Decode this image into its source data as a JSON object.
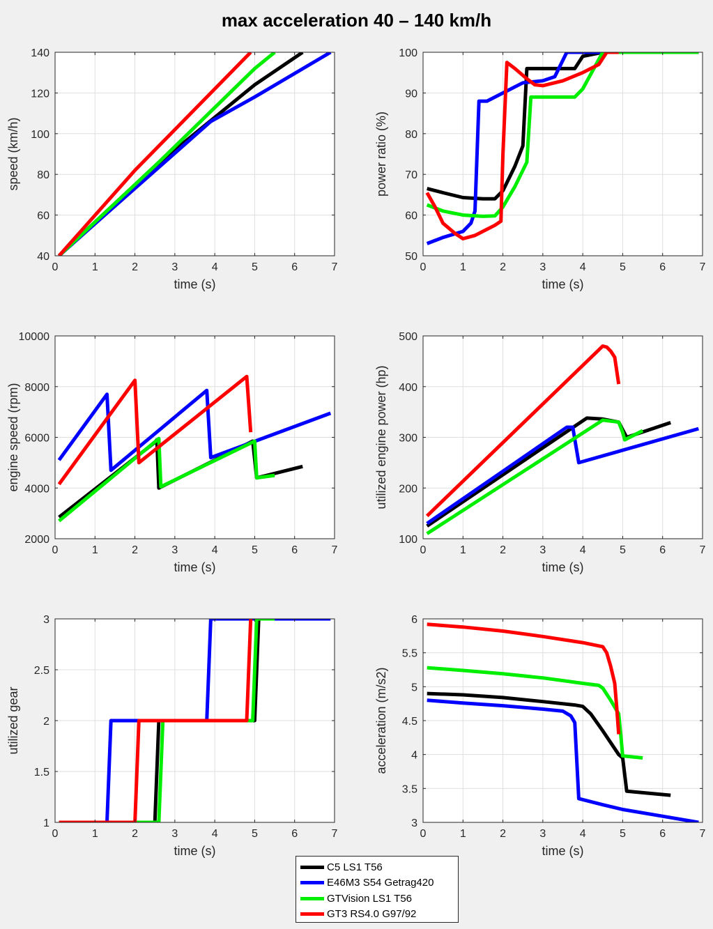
{
  "title": "max acceleration 40 – 140 km/h",
  "series": [
    {
      "name": "C5 LS1 T56",
      "color": "#000000"
    },
    {
      "name": "E46M3 S54 Getrag420",
      "color": "#0000ff"
    },
    {
      "name": "GTVision LS1 T56",
      "color": "#00ee00"
    },
    {
      "name": "GT3 RS4.0 G97/92",
      "color": "#ff0000"
    }
  ],
  "chart_data": [
    {
      "type": "line",
      "xlabel": "time (s)",
      "ylabel": "speed (km/h)",
      "xlim": [
        0,
        7
      ],
      "ylim": [
        40,
        140
      ],
      "xticks": [
        0,
        1,
        2,
        3,
        4,
        5,
        6,
        7
      ],
      "yticks": [
        40,
        60,
        80,
        100,
        120,
        140
      ],
      "series": [
        {
          "name": "C5 LS1 T56",
          "x": [
            0.1,
            2.5,
            4.0,
            5.0,
            6.2
          ],
          "y": [
            40,
            84,
            108,
            124,
            140
          ]
        },
        {
          "name": "E46M3 S54 Getrag420",
          "x": [
            0.1,
            1.3,
            3.9,
            5.0,
            6.9
          ],
          "y": [
            40,
            61,
            106,
            118,
            140
          ]
        },
        {
          "name": "GTVision LS1 T56",
          "x": [
            0.1,
            2.6,
            5.0,
            5.5
          ],
          "y": [
            40,
            86,
            132,
            140
          ]
        },
        {
          "name": "GT3 RS4.0 G97/92",
          "x": [
            0.1,
            2.0,
            4.9
          ],
          "y": [
            40,
            82,
            140
          ]
        }
      ]
    },
    {
      "type": "line",
      "xlabel": "time (s)",
      "ylabel": "power ratio (%)",
      "xlim": [
        0,
        7
      ],
      "ylim": [
        50,
        100
      ],
      "xticks": [
        0,
        1,
        2,
        3,
        4,
        5,
        6,
        7
      ],
      "yticks": [
        50,
        60,
        70,
        80,
        90,
        100
      ],
      "series": [
        {
          "name": "C5 LS1 T56",
          "x": [
            0.1,
            0.5,
            1.0,
            1.5,
            1.8,
            2.0,
            2.3,
            2.5,
            2.6,
            3.0,
            3.5,
            3.8,
            4.0,
            4.5,
            5.0,
            6.9
          ],
          "y": [
            66.5,
            65.5,
            64.3,
            64,
            64,
            66,
            72,
            77,
            96,
            96,
            96,
            96,
            99,
            100,
            100,
            100
          ]
        },
        {
          "name": "E46M3 S54 Getrag420",
          "x": [
            0.1,
            0.5,
            1.0,
            1.2,
            1.3,
            1.4,
            1.6,
            2.0,
            2.5,
            3.0,
            3.3,
            3.6,
            3.8,
            5.0,
            6.9
          ],
          "y": [
            53,
            54.5,
            56,
            58,
            61,
            88,
            88,
            90,
            92.5,
            93,
            94,
            100,
            100,
            100,
            100
          ]
        },
        {
          "name": "GTVision LS1 T56",
          "x": [
            0.1,
            0.5,
            1.0,
            1.5,
            1.8,
            2.0,
            2.3,
            2.6,
            2.7,
            3.0,
            3.5,
            3.8,
            4.0,
            4.5,
            5.0,
            5.5,
            6.9
          ],
          "y": [
            62.5,
            61,
            60,
            59.7,
            59.8,
            62,
            67,
            73,
            89,
            89,
            89,
            89,
            91,
            100,
            100,
            100,
            100
          ]
        },
        {
          "name": "GT3 RS4.0 G97/92",
          "x": [
            0.1,
            0.3,
            0.5,
            0.8,
            1.0,
            1.3,
            1.6,
            1.8,
            1.95,
            2.0,
            2.1,
            2.3,
            2.6,
            2.8,
            3.0,
            3.5,
            4.0,
            4.4,
            4.6,
            4.8,
            4.9
          ],
          "y": [
            65.5,
            62,
            58,
            55.5,
            54.2,
            55,
            56.5,
            57.5,
            58.5,
            75,
            97.5,
            96,
            93.5,
            92,
            91.8,
            93,
            95,
            97,
            100,
            100,
            100
          ]
        }
      ]
    },
    {
      "type": "line",
      "xlabel": "time (s)",
      "ylabel": "engine speed (rpm)",
      "xlim": [
        0,
        7
      ],
      "ylim": [
        2000,
        10000
      ],
      "xticks": [
        0,
        1,
        2,
        3,
        4,
        5,
        6,
        7
      ],
      "yticks": [
        2000,
        4000,
        6000,
        8000,
        10000
      ],
      "series": [
        {
          "name": "C5 LS1 T56",
          "x": [
            0.1,
            2.5,
            2.55,
            2.6,
            4.95,
            5.05,
            6.2
          ],
          "y": [
            2850,
            5800,
            5900,
            4000,
            5850,
            4400,
            4850
          ]
        },
        {
          "name": "E46M3 S54 Getrag420",
          "x": [
            0.1,
            1.3,
            1.4,
            3.8,
            3.9,
            6.9
          ],
          "y": [
            5100,
            7700,
            4700,
            7850,
            5200,
            6950
          ]
        },
        {
          "name": "GTVision LS1 T56",
          "x": [
            0.1,
            2.6,
            2.65,
            5.0,
            5.05,
            5.5
          ],
          "y": [
            2700,
            5950,
            4050,
            5850,
            4400,
            4500
          ]
        },
        {
          "name": "GT3 RS4.0 G97/92",
          "x": [
            0.1,
            2.0,
            2.1,
            4.8,
            4.9
          ],
          "y": [
            4150,
            8250,
            5000,
            8400,
            6200
          ]
        }
      ]
    },
    {
      "type": "line",
      "xlabel": "time (s)",
      "ylabel": "utilized engine power (hp)",
      "xlim": [
        0,
        7
      ],
      "ylim": [
        100,
        500
      ],
      "xticks": [
        0,
        1,
        2,
        3,
        4,
        5,
        6,
        7
      ],
      "yticks": [
        100,
        200,
        300,
        400,
        500
      ],
      "series": [
        {
          "name": "C5 LS1 T56",
          "x": [
            0.1,
            4.1,
            4.5,
            4.9,
            5.0,
            5.1,
            6.2
          ],
          "y": [
            125,
            338,
            336,
            330,
            315,
            300,
            329
          ]
        },
        {
          "name": "E46M3 S54 Getrag420",
          "x": [
            0.1,
            3.6,
            3.75,
            3.9,
            6.9
          ],
          "y": [
            130,
            320,
            320,
            250,
            317
          ]
        },
        {
          "name": "GTVision LS1 T56",
          "x": [
            0.1,
            4.5,
            4.9,
            5.0,
            5.05,
            5.5
          ],
          "y": [
            110,
            334,
            330,
            310,
            295,
            313
          ]
        },
        {
          "name": "GT3 RS4.0 G97/92",
          "x": [
            0.1,
            4.5,
            4.6,
            4.7,
            4.8,
            4.9
          ],
          "y": [
            145,
            480,
            478,
            470,
            458,
            405
          ]
        }
      ]
    },
    {
      "type": "line",
      "xlabel": "time (s)",
      "ylabel": "utilized gear",
      "xlim": [
        0,
        7
      ],
      "ylim": [
        1,
        3
      ],
      "xticks": [
        0,
        1,
        2,
        3,
        4,
        5,
        6,
        7
      ],
      "yticks": [
        1,
        1.5,
        2,
        2.5,
        3
      ],
      "series": [
        {
          "name": "C5 LS1 T56",
          "x": [
            0.1,
            2.5,
            2.6,
            5.0,
            5.1,
            6.2
          ],
          "y": [
            1,
            1,
            2,
            2,
            3,
            3
          ]
        },
        {
          "name": "E46M3 S54 Getrag420",
          "x": [
            0.1,
            1.3,
            1.4,
            3.8,
            3.9,
            6.9
          ],
          "y": [
            1,
            1,
            2,
            2,
            3,
            3
          ]
        },
        {
          "name": "GTVision LS1 T56",
          "x": [
            0.1,
            2.6,
            2.7,
            4.95,
            5.05,
            5.5
          ],
          "y": [
            1,
            1,
            2,
            2,
            3,
            3
          ]
        },
        {
          "name": "GT3 RS4.0 G97/92",
          "x": [
            0.1,
            2.0,
            2.1,
            4.8,
            4.9
          ],
          "y": [
            1,
            1,
            2,
            2,
            3
          ]
        }
      ]
    },
    {
      "type": "line",
      "xlabel": "time (s)",
      "ylabel": "acceleration (m/s2)",
      "xlim": [
        0,
        7
      ],
      "ylim": [
        3,
        6
      ],
      "xticks": [
        0,
        1,
        2,
        3,
        4,
        5,
        6,
        7
      ],
      "yticks": [
        3,
        3.5,
        4,
        4.5,
        5,
        5.5,
        6
      ],
      "series": [
        {
          "name": "C5 LS1 T56",
          "x": [
            0.1,
            1.0,
            2.0,
            3.0,
            3.8,
            4.0,
            4.2,
            4.5,
            4.9,
            5.0,
            5.1,
            6.2
          ],
          "y": [
            4.9,
            4.88,
            4.84,
            4.78,
            4.73,
            4.71,
            4.6,
            4.35,
            4.0,
            3.95,
            3.46,
            3.4
          ]
        },
        {
          "name": "E46M3 S54 Getrag420",
          "x": [
            0.1,
            1.0,
            2.0,
            3.0,
            3.5,
            3.7,
            3.8,
            3.9,
            4.5,
            5.0,
            6.0,
            6.9
          ],
          "y": [
            4.8,
            4.76,
            4.72,
            4.67,
            4.64,
            4.57,
            4.47,
            3.35,
            3.26,
            3.19,
            3.09,
            3.0
          ]
        },
        {
          "name": "GTVision LS1 T56",
          "x": [
            0.1,
            1.0,
            2.0,
            3.0,
            4.0,
            4.4,
            4.5,
            4.7,
            4.9,
            4.95,
            5.0,
            5.5
          ],
          "y": [
            5.28,
            5.24,
            5.19,
            5.13,
            5.05,
            5.02,
            4.98,
            4.8,
            4.6,
            4.3,
            3.98,
            3.95
          ]
        },
        {
          "name": "GT3 RS4.0 G97/92",
          "x": [
            0.1,
            1.0,
            2.0,
            3.0,
            4.0,
            4.5,
            4.6,
            4.7,
            4.8,
            4.85,
            4.9
          ],
          "y": [
            5.92,
            5.88,
            5.82,
            5.74,
            5.65,
            5.59,
            5.5,
            5.3,
            5.05,
            4.7,
            4.3
          ]
        }
      ]
    }
  ]
}
